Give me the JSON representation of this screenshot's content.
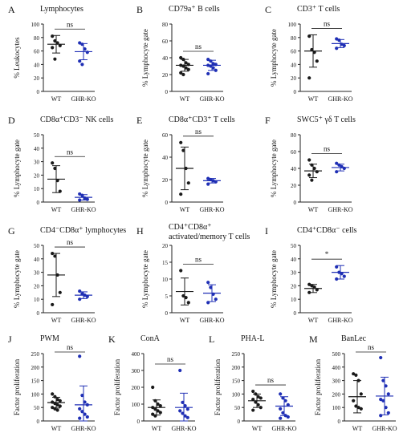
{
  "figure": {
    "colors": {
      "wt": "#1a1a1a",
      "ghr": "#1f2fb5",
      "axis": "#222222"
    },
    "groups": [
      "WT",
      "GHR-KO"
    ]
  },
  "chart_data": [
    {
      "type": "scatter",
      "letter": "A",
      "title": "Lymphocytes",
      "ylabel": "% Leukocytes",
      "ylim": [
        0,
        100
      ],
      "yticks": [
        0,
        20,
        40,
        60,
        80,
        100
      ],
      "sig": "ns",
      "series": [
        {
          "name": "WT",
          "values": [
            82,
            75,
            72,
            68,
            65,
            48
          ],
          "mean": 70,
          "sd": 13
        },
        {
          "name": "GHR-KO",
          "values": [
            72,
            70,
            63,
            58,
            45,
            40
          ],
          "mean": 59,
          "sd": 12
        }
      ]
    },
    {
      "type": "scatter",
      "letter": "B",
      "title": "CD79a⁺ B cells",
      "ylabel": "% Lymphocyte gate",
      "ylim": [
        0,
        80
      ],
      "yticks": [
        0,
        20,
        40,
        60,
        80
      ],
      "sig": "ns",
      "series": [
        {
          "name": "WT",
          "values": [
            40,
            38,
            34,
            32,
            31,
            30,
            28,
            26,
            22,
            20
          ],
          "mean": 31,
          "sd": 7
        },
        {
          "name": "GHR-KO",
          "values": [
            38,
            36,
            33,
            32,
            31,
            30,
            28,
            25,
            21
          ],
          "mean": 31,
          "sd": 6
        }
      ]
    },
    {
      "type": "scatter",
      "letter": "C",
      "title": "CD3⁺ T cells",
      "ylabel": "% Lymphocyte gate",
      "ylim": [
        0,
        100
      ],
      "yticks": [
        0,
        20,
        40,
        60,
        80,
        100
      ],
      "sig": "ns",
      "series": [
        {
          "name": "WT",
          "values": [
            82,
            62,
            58,
            45,
            20
          ],
          "mean": 60,
          "sd": 24
        },
        {
          "name": "GHR-KO",
          "values": [
            78,
            76,
            70,
            68,
            64
          ],
          "mean": 71,
          "sd": 6
        }
      ]
    },
    {
      "type": "scatter",
      "letter": "D",
      "title": "CD8α⁺CD3⁻ NK cells",
      "ylabel": "% Lymphocyte gate",
      "ylim": [
        0,
        50
      ],
      "yticks": [
        0,
        10,
        20,
        30,
        40,
        50
      ],
      "sig": "ns",
      "series": [
        {
          "name": "WT",
          "values": [
            29,
            25,
            16,
            8
          ],
          "mean": 17,
          "sd": 10
        },
        {
          "name": "GHR-KO",
          "values": [
            6,
            5,
            3,
            2,
            1.5
          ],
          "mean": 3.5,
          "sd": 2
        }
      ]
    },
    {
      "type": "scatter",
      "letter": "E",
      "title": "CD8α⁺CD3⁺ T cells",
      "ylabel": "% Lymphocyte gate",
      "ylim": [
        0,
        60
      ],
      "yticks": [
        0,
        20,
        40,
        60
      ],
      "sig": "ns",
      "series": [
        {
          "name": "WT",
          "values": [
            53,
            46,
            30,
            17,
            7
          ],
          "mean": 30,
          "sd": 19
        },
        {
          "name": "GHR-KO",
          "values": [
            21,
            20,
            19,
            18,
            16
          ],
          "mean": 19,
          "sd": 2
        }
      ]
    },
    {
      "type": "scatter",
      "letter": "F",
      "title": "SWC5⁺ γδ T cells",
      "ylabel": "% Lymphocyte gate",
      "ylim": [
        0,
        80
      ],
      "yticks": [
        0,
        20,
        40,
        60,
        80
      ],
      "sig": "ns",
      "series": [
        {
          "name": "WT",
          "values": [
            50,
            44,
            40,
            36,
            32,
            26
          ],
          "mean": 37,
          "sd": 8
        },
        {
          "name": "GHR-KO",
          "values": [
            46,
            44,
            42,
            40,
            36
          ],
          "mean": 41,
          "sd": 4
        }
      ]
    },
    {
      "type": "scatter",
      "letter": "G",
      "title": "CD4⁻CD8α⁺ lymphocytes",
      "ylabel": "% Lymphocyte gate",
      "ylim": [
        0,
        50
      ],
      "yticks": [
        0,
        10,
        20,
        30,
        40,
        50
      ],
      "sig": "ns",
      "series": [
        {
          "name": "WT",
          "values": [
            44,
            42,
            28,
            15,
            6
          ],
          "mean": 28,
          "sd": 16
        },
        {
          "name": "GHR-KO",
          "values": [
            16,
            14,
            13,
            12,
            10
          ],
          "mean": 13,
          "sd": 2.5
        }
      ]
    },
    {
      "type": "scatter",
      "letter": "H",
      "title": "CD4⁺CD8α⁺",
      "title2": "activated/memory T cells",
      "ylabel": "% Lymphocyte gate",
      "ylim": [
        0,
        20
      ],
      "yticks": [
        0,
        5,
        10,
        15,
        20
      ],
      "sig": "ns",
      "series": [
        {
          "name": "WT",
          "values": [
            12.5,
            5,
            4.5,
            3
          ],
          "mean": 6.3,
          "sd": 4
        },
        {
          "name": "GHR-KO",
          "values": [
            9,
            7.5,
            5.5,
            4,
            3
          ],
          "mean": 5.8,
          "sd": 2.5
        }
      ]
    },
    {
      "type": "scatter",
      "letter": "I",
      "title": "CD4⁺CD8α⁻ cells",
      "ylabel": "% Lymphocyte gate",
      "ylim": [
        0,
        50
      ],
      "yticks": [
        0,
        10,
        20,
        30,
        40,
        50
      ],
      "sig": "*",
      "series": [
        {
          "name": "WT",
          "values": [
            21,
            20,
            19,
            17,
            15
          ],
          "mean": 18,
          "sd": 3
        },
        {
          "name": "GHR-KO",
          "values": [
            34,
            30,
            29,
            27,
            25
          ],
          "mean": 30,
          "sd": 5
        }
      ]
    },
    {
      "type": "scatter",
      "letter": "J",
      "title": "PWM",
      "ylabel": "Factor proliferation",
      "ylim": [
        0,
        250
      ],
      "yticks": [
        0,
        50,
        100,
        150,
        200,
        250
      ],
      "sig": "ns",
      "series": [
        {
          "name": "WT",
          "values": [
            100,
            90,
            80,
            75,
            70,
            65,
            60,
            55,
            50,
            45,
            40
          ],
          "mean": 68,
          "sd": 20
        },
        {
          "name": "GHR-KO",
          "values": [
            240,
            95,
            70,
            60,
            45,
            35,
            25,
            15,
            10
          ],
          "mean": 60,
          "sd": 70
        }
      ]
    },
    {
      "type": "scatter",
      "letter": "K",
      "title": "ConA",
      "ylabel": "Factor proliferation",
      "ylim": [
        0,
        400
      ],
      "yticks": [
        0,
        100,
        200,
        300,
        400
      ],
      "sig": "ns",
      "series": [
        {
          "name": "WT",
          "values": [
            200,
            120,
            100,
            90,
            80,
            70,
            60,
            50,
            40,
            30
          ],
          "mean": 80,
          "sd": 45
        },
        {
          "name": "GHR-KO",
          "values": [
            300,
            110,
            90,
            70,
            60,
            45,
            30,
            20
          ],
          "mean": 80,
          "sd": 85
        }
      ]
    },
    {
      "type": "scatter",
      "letter": "L",
      "title": "PHA-L",
      "ylabel": "Factor proliferation",
      "ylim": [
        0,
        250
      ],
      "yticks": [
        0,
        50,
        100,
        150,
        200,
        250
      ],
      "sig": "ns",
      "series": [
        {
          "name": "WT",
          "values": [
            110,
            100,
            90,
            85,
            80,
            70,
            60,
            50,
            40
          ],
          "mean": 75,
          "sd": 25
        },
        {
          "name": "GHR-KO",
          "values": [
            100,
            85,
            75,
            60,
            45,
            30,
            20,
            15,
            10
          ],
          "mean": 55,
          "sd": 35
        }
      ]
    },
    {
      "type": "scatter",
      "letter": "M",
      "title": "BanLec",
      "ylabel": "Factor proliferation",
      "ylim": [
        0,
        500
      ],
      "yticks": [
        0,
        100,
        200,
        300,
        400,
        500
      ],
      "sig": "ns",
      "series": [
        {
          "name": "WT",
          "values": [
            350,
            340,
            300,
            200,
            150,
            110,
            100,
            90
          ],
          "mean": 180,
          "sd": 120
        },
        {
          "name": "GHR-KO",
          "values": [
            470,
            300,
            260,
            200,
            160,
            150,
            100,
            60,
            40
          ],
          "mean": 185,
          "sd": 140
        }
      ]
    }
  ]
}
